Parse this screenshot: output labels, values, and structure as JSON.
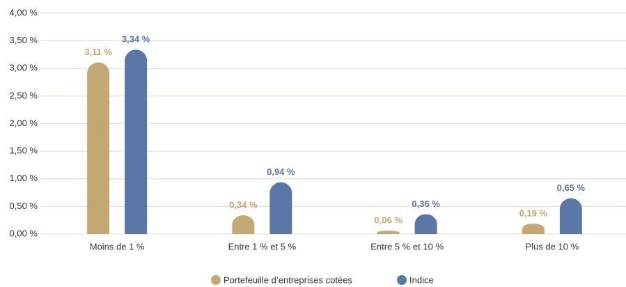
{
  "chart_data": {
    "type": "bar",
    "categories": [
      "Moins de 1 %",
      "Entre 1 % et 5 %",
      "Entre 5 % et 10 %",
      "Plus de 10 %"
    ],
    "series": [
      {
        "name": "Portefeuille d’entreprises cotées",
        "color": "#c4a874",
        "values": [
          3.11,
          0.34,
          0.06,
          0.19
        ],
        "value_labels": [
          "3,11 %",
          "0,34 %",
          "0,06 %",
          "0,19 %"
        ]
      },
      {
        "name": "Indice",
        "color": "#5b77a6",
        "values": [
          3.34,
          0.94,
          0.36,
          0.65
        ],
        "value_labels": [
          "3,34 %",
          "0,94 %",
          "0,36 %",
          "0,65 %"
        ]
      }
    ],
    "ylim": [
      0,
      4
    ],
    "yticks": [
      {
        "value": 0,
        "label": "0,00 %"
      },
      {
        "value": 0.5,
        "label": "0,50 %"
      },
      {
        "value": 1,
        "label": "1,00 %"
      },
      {
        "value": 1.5,
        "label": "1,50 %"
      },
      {
        "value": 2,
        "label": "2,00 %"
      },
      {
        "value": 2.5,
        "label": "2,50 %"
      },
      {
        "value": 3,
        "label": "3,00 %"
      },
      {
        "value": 3.5,
        "label": "3,50 %"
      },
      {
        "value": 4,
        "label": "4,00 %"
      }
    ],
    "grid": true,
    "legend": "bottom"
  }
}
